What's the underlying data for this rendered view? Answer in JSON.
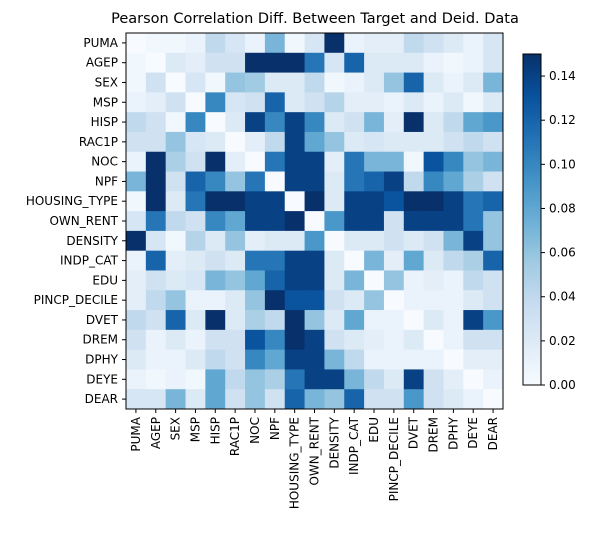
{
  "chart_data": {
    "type": "heatmap",
    "title": "Pearson Correlation Diff. Between Target and Deid. Data",
    "labels": [
      "PUMA",
      "AGEP",
      "SEX",
      "MSP",
      "HISP",
      "RAC1P",
      "NOC",
      "NPF",
      "HOUSING_TYPE",
      "OWN_RENT",
      "DENSITY",
      "INDP_CAT",
      "EDU",
      "PINCP_DECILE",
      "DVET",
      "DREM",
      "DPHY",
      "DEYE",
      "DEAR"
    ],
    "matrix": [
      [
        0.0,
        0.005,
        0.005,
        0.01,
        0.04,
        0.025,
        0.01,
        0.07,
        0.005,
        0.025,
        0.15,
        0.01,
        0.015,
        0.015,
        0.04,
        0.03,
        0.02,
        0.01,
        0.025
      ],
      [
        0.005,
        0.0,
        0.02,
        0.015,
        0.03,
        0.03,
        0.15,
        0.15,
        0.15,
        0.11,
        0.025,
        0.12,
        0.02,
        0.02,
        0.02,
        0.01,
        0.005,
        0.01,
        0.025
      ],
      [
        0.005,
        0.03,
        0.0,
        0.025,
        0.005,
        0.06,
        0.055,
        0.02,
        0.02,
        0.04,
        0.005,
        0.01,
        0.02,
        0.06,
        0.12,
        0.02,
        0.01,
        0.02,
        0.07
      ],
      [
        0.01,
        0.015,
        0.03,
        0.0,
        0.1,
        0.025,
        0.03,
        0.12,
        0.02,
        0.03,
        0.045,
        0.015,
        0.015,
        0.01,
        0.02,
        0.01,
        0.02,
        0.005,
        0.02
      ],
      [
        0.04,
        0.03,
        0.005,
        0.1,
        0.0,
        0.02,
        0.14,
        0.1,
        0.14,
        0.1,
        0.02,
        0.03,
        0.07,
        0.015,
        0.15,
        0.02,
        0.04,
        0.08,
        0.09
      ],
      [
        0.03,
        0.03,
        0.06,
        0.025,
        0.02,
        0.0,
        0.015,
        0.04,
        0.14,
        0.08,
        0.06,
        0.02,
        0.025,
        0.02,
        0.02,
        0.02,
        0.03,
        0.04,
        0.03
      ],
      [
        0.01,
        0.15,
        0.05,
        0.03,
        0.15,
        0.015,
        0.0,
        0.11,
        0.14,
        0.14,
        0.015,
        0.11,
        0.07,
        0.07,
        0.005,
        0.13,
        0.1,
        0.06,
        0.07
      ],
      [
        0.07,
        0.15,
        0.03,
        0.12,
        0.1,
        0.06,
        0.11,
        0.0,
        0.14,
        0.14,
        0.02,
        0.11,
        0.12,
        0.14,
        0.04,
        0.1,
        0.08,
        0.05,
        0.03
      ],
      [
        0.005,
        0.15,
        0.02,
        0.11,
        0.15,
        0.15,
        0.14,
        0.14,
        0.0,
        0.15,
        0.02,
        0.14,
        0.14,
        0.13,
        0.15,
        0.15,
        0.14,
        0.11,
        0.12
      ],
      [
        0.025,
        0.11,
        0.04,
        0.03,
        0.1,
        0.08,
        0.14,
        0.14,
        0.15,
        0.0,
        0.09,
        0.14,
        0.14,
        0.03,
        0.14,
        0.14,
        0.14,
        0.11,
        0.06
      ],
      [
        0.15,
        0.025,
        0.005,
        0.045,
        0.02,
        0.06,
        0.015,
        0.02,
        0.02,
        0.09,
        0.0,
        0.02,
        0.02,
        0.03,
        0.02,
        0.03,
        0.07,
        0.14,
        0.06
      ],
      [
        0.01,
        0.12,
        0.015,
        0.02,
        0.03,
        0.02,
        0.11,
        0.11,
        0.14,
        0.14,
        0.02,
        0.0,
        0.07,
        0.015,
        0.08,
        0.02,
        0.04,
        0.05,
        0.12
      ],
      [
        0.015,
        0.03,
        0.02,
        0.025,
        0.07,
        0.06,
        0.08,
        0.12,
        0.14,
        0.14,
        0.02,
        0.07,
        0.0,
        0.06,
        0.01,
        0.015,
        0.01,
        0.04,
        0.03
      ],
      [
        0.015,
        0.04,
        0.06,
        0.01,
        0.01,
        0.02,
        0.06,
        0.15,
        0.13,
        0.13,
        0.03,
        0.02,
        0.06,
        0.0,
        0.01,
        0.01,
        0.01,
        0.02,
        0.03
      ],
      [
        0.04,
        0.03,
        0.12,
        0.02,
        0.15,
        0.02,
        0.05,
        0.04,
        0.15,
        0.06,
        0.02,
        0.08,
        0.01,
        0.01,
        0.0,
        0.02,
        0.01,
        0.14,
        0.09
      ],
      [
        0.03,
        0.01,
        0.02,
        0.01,
        0.03,
        0.03,
        0.13,
        0.1,
        0.15,
        0.14,
        0.03,
        0.02,
        0.015,
        0.01,
        0.02,
        0.0,
        0.01,
        0.03,
        0.03
      ],
      [
        0.02,
        0.01,
        0.01,
        0.02,
        0.04,
        0.03,
        0.1,
        0.08,
        0.14,
        0.14,
        0.07,
        0.04,
        0.01,
        0.01,
        0.01,
        0.01,
        0.0,
        0.015,
        0.015
      ],
      [
        0.01,
        0.005,
        0.01,
        0.005,
        0.08,
        0.04,
        0.06,
        0.05,
        0.11,
        0.14,
        0.14,
        0.07,
        0.04,
        0.02,
        0.14,
        0.03,
        0.015,
        0.0,
        0.01
      ],
      [
        0.025,
        0.025,
        0.07,
        0.02,
        0.08,
        0.03,
        0.06,
        0.03,
        0.12,
        0.07,
        0.06,
        0.12,
        0.03,
        0.03,
        0.09,
        0.03,
        0.02,
        0.01,
        0.0
      ]
    ],
    "colorbar": {
      "min": 0.0,
      "max": 0.15,
      "ticks": [
        "0.00",
        "0.02",
        "0.04",
        "0.06",
        "0.08",
        "0.10",
        "0.12",
        "0.14"
      ],
      "colormap": "Blues"
    },
    "grid": false
  }
}
